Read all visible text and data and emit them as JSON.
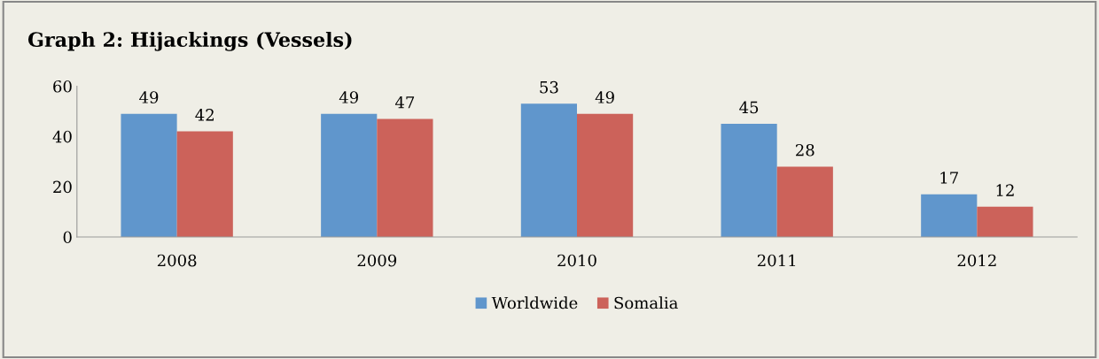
{
  "chart_data": {
    "type": "bar",
    "title": "Graph 2: Hijackings (Vessels)",
    "categories": [
      "2008",
      "2009",
      "2010",
      "2011",
      "2012"
    ],
    "series": [
      {
        "name": "Worldwide",
        "color": "#6096cc",
        "values": [
          49,
          49,
          53,
          45,
          17
        ]
      },
      {
        "name": "Somalia",
        "color": "#cc625a",
        "values": [
          42,
          47,
          49,
          28,
          12
        ]
      }
    ],
    "ylim": [
      0,
      60
    ],
    "yticks": [
      0,
      20,
      40,
      60
    ],
    "grid": false,
    "legend": "bottom",
    "data_labels": true
  }
}
